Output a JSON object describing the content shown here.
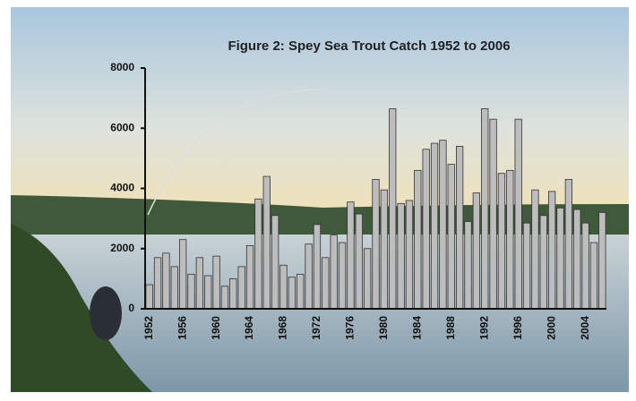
{
  "chart_data": {
    "type": "bar",
    "title": "Figure 2: Spey Sea Trout Catch 1952 to 2006",
    "categories": [
      "1952",
      null,
      null,
      null,
      "1956",
      null,
      null,
      null,
      "1960",
      null,
      null,
      null,
      "1964",
      null,
      null,
      null,
      "1968",
      null,
      null,
      null,
      "1972",
      null,
      null,
      null,
      "1976",
      null,
      null,
      null,
      "1980",
      null,
      null,
      null,
      "1984",
      null,
      null,
      null,
      "1988",
      null,
      null,
      null,
      "1992",
      null,
      null,
      null,
      "1996",
      null,
      null,
      null,
      "2000",
      null,
      null,
      null,
      "2004",
      null,
      null
    ],
    "values": [
      800,
      1700,
      1850,
      1400,
      2300,
      1150,
      1700,
      1100,
      1750,
      750,
      1000,
      1400,
      2100,
      3650,
      4400,
      3100,
      1450,
      1050,
      1150,
      2150,
      2800,
      1700,
      2450,
      2200,
      3550,
      3150,
      2000,
      4300,
      3950,
      6650,
      3500,
      3600,
      4600,
      5300,
      5500,
      5600,
      4800,
      5400,
      2900,
      3850,
      6650,
      6300,
      4500,
      4600,
      6300,
      2850,
      3950,
      3100,
      3900,
      3350,
      4300,
      3300,
      2850,
      2200,
      3200
    ],
    "color": "#bdbdbd",
    "ylim": [
      0,
      8000
    ],
    "yticks": [
      0,
      2000,
      4000,
      6000,
      8000
    ]
  }
}
